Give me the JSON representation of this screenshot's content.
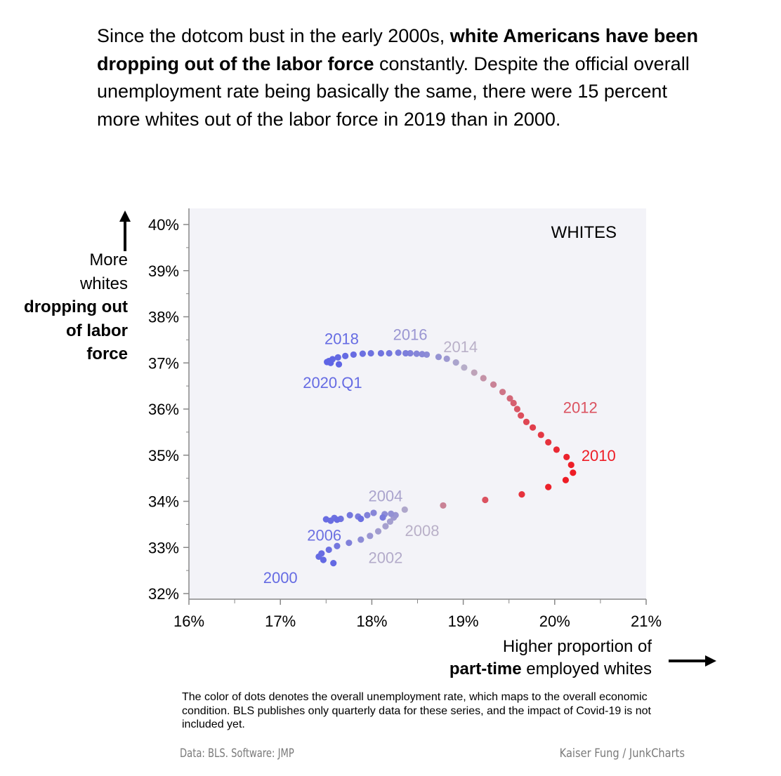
{
  "headline": {
    "part1": "Since the dotcom bust in the early 2000s, ",
    "bold1": "white Americans have been dropping out of the labor force",
    "part2": " constantly. Despite the official overall unemployment rate being basically the same, there were 15 percent more whites out of the labor force in 2019 than in 2000."
  },
  "y_title": {
    "line1": "More",
    "line2": "whites",
    "bold": "dropping out of labor force"
  },
  "x_title": {
    "line1": "Higher proportion of",
    "bold": "part-time",
    "rest": " employed whites"
  },
  "footnote": "The color of dots denotes the overall unemployment rate, which maps to the overall economic condition. BLS publishes only quarterly data for these series, and the impact of Covid-19 is not included yet.",
  "source_left": "Data: BLS. Software: JMP",
  "source_right": "Kaiser Fung / JunkCharts",
  "colors": {
    "panel": "#f3f3f8",
    "axis": "#888888",
    "text": "#000000",
    "low_unemployment": "#5b62e6",
    "mid_unemployment": "#b9b0c8",
    "high_unemployment": "#ee1c25"
  },
  "chart_data": {
    "type": "scatter",
    "panel_label": "WHITES",
    "xlim": [
      16,
      21
    ],
    "ylim": [
      32,
      40
    ],
    "x_ticks": [
      16,
      17,
      18,
      19,
      20,
      21
    ],
    "y_ticks": [
      32,
      33,
      34,
      35,
      36,
      37,
      38,
      39,
      40
    ],
    "x_tick_labels": [
      "16%",
      "17%",
      "18%",
      "19%",
      "20%",
      "21%"
    ],
    "y_tick_labels": [
      "32%",
      "33%",
      "34%",
      "35%",
      "36%",
      "37%",
      "38%",
      "39%",
      "40%"
    ],
    "color_scale": "overall unemployment rate (blue = low, grey = mid, red = high)",
    "points": [
      {
        "x": 17.58,
        "y": 32.66,
        "u": 0.04
      },
      {
        "x": 17.47,
        "y": 32.73,
        "u": 0.04
      },
      {
        "x": 17.42,
        "y": 32.8,
        "u": 0.05
      },
      {
        "x": 17.45,
        "y": 32.87,
        "u": 0.06
      },
      {
        "x": 17.53,
        "y": 32.95,
        "u": 0.08
      },
      {
        "x": 17.62,
        "y": 33.03,
        "u": 0.12
      },
      {
        "x": 17.75,
        "y": 33.1,
        "u": 0.18
      },
      {
        "x": 17.88,
        "y": 33.17,
        "u": 0.24
      },
      {
        "x": 17.98,
        "y": 33.25,
        "u": 0.3
      },
      {
        "x": 18.07,
        "y": 33.35,
        "u": 0.34
      },
      {
        "x": 18.15,
        "y": 33.46,
        "u": 0.36
      },
      {
        "x": 18.2,
        "y": 33.56,
        "u": 0.35
      },
      {
        "x": 18.24,
        "y": 33.65,
        "u": 0.33
      },
      {
        "x": 18.26,
        "y": 33.7,
        "u": 0.3
      },
      {
        "x": 18.21,
        "y": 33.73,
        "u": 0.27
      },
      {
        "x": 18.14,
        "y": 33.72,
        "u": 0.24
      },
      {
        "x": 18.02,
        "y": 33.75,
        "u": 0.21
      },
      {
        "x": 17.95,
        "y": 33.7,
        "u": 0.18
      },
      {
        "x": 17.85,
        "y": 33.67,
        "u": 0.15
      },
      {
        "x": 17.76,
        "y": 33.7,
        "u": 0.12
      },
      {
        "x": 17.66,
        "y": 33.62,
        "u": 0.1
      },
      {
        "x": 17.59,
        "y": 33.64,
        "u": 0.08
      },
      {
        "x": 17.55,
        "y": 33.58,
        "u": 0.07
      },
      {
        "x": 17.5,
        "y": 33.61,
        "u": 0.06
      },
      {
        "x": 17.62,
        "y": 33.6,
        "u": 0.06
      },
      {
        "x": 17.88,
        "y": 33.62,
        "u": 0.08
      },
      {
        "x": 18.12,
        "y": 33.65,
        "u": 0.15
      },
      {
        "x": 18.36,
        "y": 33.82,
        "u": 0.4
      },
      {
        "x": 18.78,
        "y": 33.91,
        "u": 0.62
      },
      {
        "x": 19.24,
        "y": 34.03,
        "u": 0.8
      },
      {
        "x": 19.64,
        "y": 34.15,
        "u": 0.92
      },
      {
        "x": 19.93,
        "y": 34.31,
        "u": 0.98
      },
      {
        "x": 20.12,
        "y": 34.46,
        "u": 1.0
      },
      {
        "x": 20.2,
        "y": 34.62,
        "u": 1.0
      },
      {
        "x": 20.18,
        "y": 34.79,
        "u": 0.99
      },
      {
        "x": 20.13,
        "y": 34.96,
        "u": 0.97
      },
      {
        "x": 20.02,
        "y": 35.12,
        "u": 0.95
      },
      {
        "x": 19.93,
        "y": 35.28,
        "u": 0.92
      },
      {
        "x": 19.85,
        "y": 35.44,
        "u": 0.9
      },
      {
        "x": 19.76,
        "y": 35.6,
        "u": 0.87
      },
      {
        "x": 19.69,
        "y": 35.72,
        "u": 0.84
      },
      {
        "x": 19.63,
        "y": 35.86,
        "u": 0.81
      },
      {
        "x": 19.59,
        "y": 36.0,
        "u": 0.78
      },
      {
        "x": 19.55,
        "y": 36.13,
        "u": 0.75
      },
      {
        "x": 19.51,
        "y": 36.23,
        "u": 0.72
      },
      {
        "x": 19.43,
        "y": 36.37,
        "u": 0.67
      },
      {
        "x": 19.33,
        "y": 36.53,
        "u": 0.62
      },
      {
        "x": 19.22,
        "y": 36.67,
        "u": 0.56
      },
      {
        "x": 19.12,
        "y": 36.79,
        "u": 0.5
      },
      {
        "x": 19.01,
        "y": 36.9,
        "u": 0.44
      },
      {
        "x": 18.92,
        "y": 37.01,
        "u": 0.38
      },
      {
        "x": 18.82,
        "y": 37.09,
        "u": 0.32
      },
      {
        "x": 18.73,
        "y": 37.13,
        "u": 0.28
      },
      {
        "x": 18.6,
        "y": 37.18,
        "u": 0.24
      },
      {
        "x": 18.55,
        "y": 37.19,
        "u": 0.22
      },
      {
        "x": 18.49,
        "y": 37.2,
        "u": 0.2
      },
      {
        "x": 18.42,
        "y": 37.21,
        "u": 0.18
      },
      {
        "x": 18.37,
        "y": 37.21,
        "u": 0.16
      },
      {
        "x": 18.29,
        "y": 37.22,
        "u": 0.14
      },
      {
        "x": 18.19,
        "y": 37.21,
        "u": 0.12
      },
      {
        "x": 18.1,
        "y": 37.21,
        "u": 0.1
      },
      {
        "x": 17.99,
        "y": 37.21,
        "u": 0.09
      },
      {
        "x": 17.9,
        "y": 37.2,
        "u": 0.08
      },
      {
        "x": 17.8,
        "y": 37.18,
        "u": 0.06
      },
      {
        "x": 17.71,
        "y": 37.15,
        "u": 0.05
      },
      {
        "x": 17.63,
        "y": 37.12,
        "u": 0.04
      },
      {
        "x": 17.57,
        "y": 37.08,
        "u": 0.03
      },
      {
        "x": 17.53,
        "y": 37.04,
        "u": 0.02
      },
      {
        "x": 17.51,
        "y": 37.02,
        "u": 0.02
      },
      {
        "x": 17.55,
        "y": 37.0,
        "u": 0.02
      },
      {
        "x": 17.64,
        "y": 36.97,
        "u": 0.02
      }
    ],
    "labels": [
      {
        "text": "2000",
        "x": 17.0,
        "y": 32.35,
        "u": 0.05
      },
      {
        "text": "2002",
        "x": 18.15,
        "y": 32.78,
        "u": 0.42
      },
      {
        "text": "2004",
        "x": 18.15,
        "y": 34.12,
        "u": 0.38
      },
      {
        "text": "2006",
        "x": 17.48,
        "y": 33.27,
        "u": 0.08
      },
      {
        "text": "2008",
        "x": 18.55,
        "y": 33.37,
        "u": 0.45
      },
      {
        "text": "2010",
        "x": 20.48,
        "y": 35.0,
        "u": 1.0
      },
      {
        "text": "2012",
        "x": 20.28,
        "y": 36.04,
        "u": 0.8
      },
      {
        "text": "2014",
        "x": 18.97,
        "y": 37.35,
        "u": 0.45
      },
      {
        "text": "2016",
        "x": 18.42,
        "y": 37.62,
        "u": 0.3
      },
      {
        "text": "2018",
        "x": 17.67,
        "y": 37.53,
        "u": 0.05
      },
      {
        "text": "2020.Q1",
        "x": 17.57,
        "y": 36.58,
        "u": 0.05
      }
    ]
  }
}
